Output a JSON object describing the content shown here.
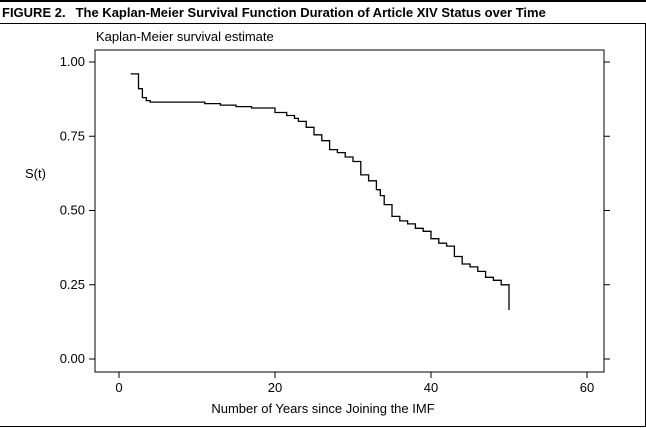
{
  "figure": {
    "number": "FIGURE 2.",
    "title": "The Kaplan-Meier Survival Function Duration of Article XIV Status over Time"
  },
  "chart_data": {
    "type": "line",
    "title": "Kaplan-Meier survival estimate",
    "xlabel": "Number of Years since Joining the IMF",
    "ylabel": "S(t)",
    "xlim": [
      0,
      60
    ],
    "ylim": [
      0,
      1
    ],
    "xticks": [
      0,
      20,
      40,
      60
    ],
    "xtick_labels": [
      "0",
      "20",
      "40",
      "60"
    ],
    "yticks": [
      0,
      0.25,
      0.5,
      0.75,
      1
    ],
    "ytick_labels": [
      "0.00",
      "0.25",
      "0.50",
      "0.75",
      "1.00"
    ],
    "grid": false,
    "step": true,
    "series": [
      {
        "x": [
          1.5,
          2.5,
          3,
          3.5,
          4,
          11,
          13,
          15,
          17,
          20,
          21.5,
          22.5,
          23,
          24,
          25,
          26,
          27,
          28,
          29,
          30,
          31,
          32,
          33,
          33.5,
          34,
          35,
          36,
          37,
          38,
          39,
          40,
          41,
          42,
          43,
          44,
          45,
          46,
          47,
          48,
          49,
          50,
          50
        ],
        "y": [
          0.96,
          0.91,
          0.88,
          0.87,
          0.865,
          0.86,
          0.855,
          0.85,
          0.845,
          0.83,
          0.82,
          0.81,
          0.8,
          0.78,
          0.755,
          0.735,
          0.705,
          0.695,
          0.68,
          0.665,
          0.62,
          0.6,
          0.57,
          0.55,
          0.52,
          0.48,
          0.465,
          0.455,
          0.44,
          0.43,
          0.405,
          0.39,
          0.38,
          0.345,
          0.32,
          0.31,
          0.295,
          0.275,
          0.265,
          0.25,
          0.25,
          0.165
        ]
      }
    ]
  }
}
